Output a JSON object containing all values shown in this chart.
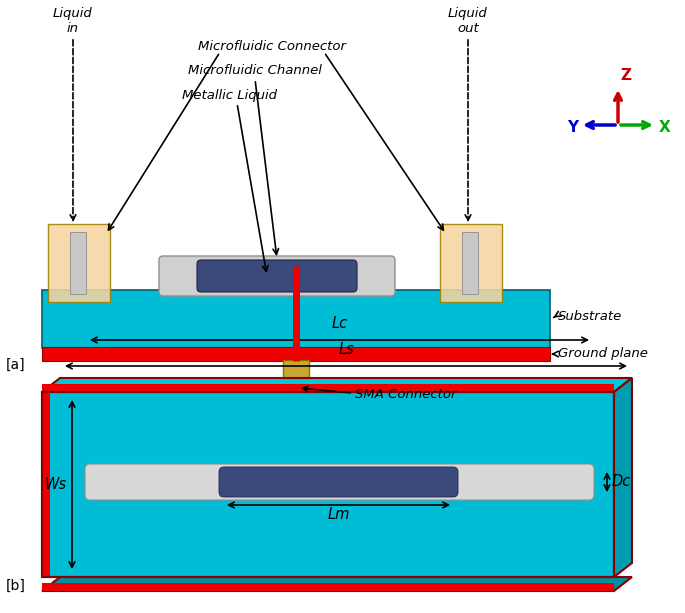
{
  "background_color": "#ffffff",
  "cyan_color": "#00BCD4",
  "red_color": "#EE0000",
  "dark_blue_color": "#3A4A7A",
  "light_gray_color": "#C8C8C8",
  "beige_color": "#F5D5A0",
  "gold_color": "#C8A830",
  "axis_z_color": "#CC0000",
  "axis_x_color": "#00AA00",
  "axis_y_color": "#0000CC",
  "text_color": "#000000",
  "label_a": "[a]",
  "label_b": "[b]",
  "label_substrate": "Substrate",
  "label_ground": "Ground plane",
  "label_sma": "SMA Connector",
  "label_liquid_in": "Liquid\nin",
  "label_liquid_out": "Liquid\nout",
  "label_connector": "Microfluidic Connector",
  "label_channel": "Microfluidic Channel",
  "label_metallic": "Metallic Liquid",
  "label_Ls": "Ls",
  "label_Lc": "Lc",
  "label_Lm": "Lm",
  "label_Dc": "Dc",
  "label_Ws": "Ws"
}
